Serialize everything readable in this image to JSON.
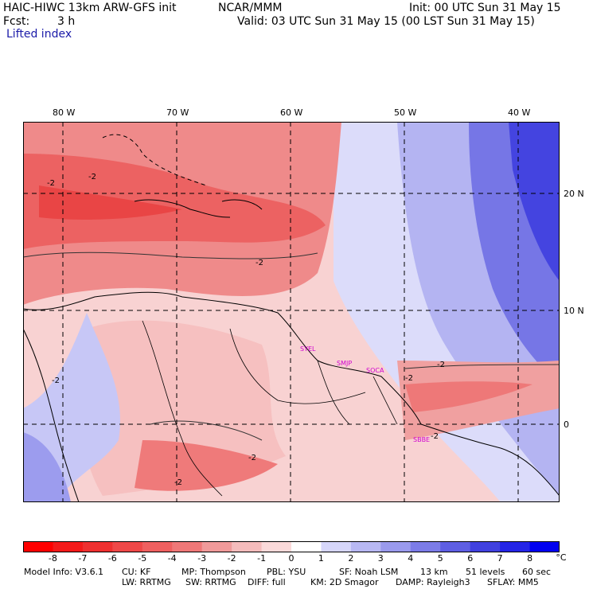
{
  "header": {
    "title_left": "HAIC-HIWC 13km ARW-GFS init",
    "center_label": "NCAR/MMM",
    "init_label": "Init: 00 UTC Sun 31 May 15",
    "fcst_label": "Fcst:",
    "fcst_value": "3 h",
    "valid_label": "Valid: 03 UTC Sun 31 May 15 (00 LST Sun 31 May 15)",
    "field_name": "Lifted index"
  },
  "map": {
    "lon_labels": [
      "80 W",
      "70 W",
      "60 W",
      "50 W",
      "40 W"
    ],
    "lat_labels": [
      "20 N",
      "10 N",
      "0"
    ],
    "stations": [
      "SYEL",
      "SMJP",
      "SOCA",
      "SBBE"
    ],
    "contour_labels": [
      "-2",
      "-2",
      "-2",
      "-2",
      "-2",
      "-2",
      "-2",
      "-2",
      "-2"
    ]
  },
  "colorbar": {
    "ticks": [
      "-8",
      "-7",
      "-6",
      "-5",
      "-4",
      "-3",
      "-2",
      "-1",
      "0",
      "1",
      "2",
      "3",
      "4",
      "5",
      "6",
      "7",
      "8"
    ],
    "unit": "°C",
    "colors": [
      "#ff0000",
      "#f41a1a",
      "#ef3030",
      "#ef4848",
      "#ef6060",
      "#ef7878",
      "#f09a9a",
      "#f5bcbc",
      "#fbdada",
      "#ffffff",
      "#d6d6fa",
      "#b8b8f3",
      "#9a9aed",
      "#7c7ce8",
      "#5e5ee3",
      "#4141e0",
      "#2424e6",
      "#0000f0"
    ]
  },
  "footer": {
    "line1": [
      "Model Info: V3.6.1",
      "CU: KF",
      "MP: Thompson",
      "PBL: YSU",
      "SF: Noah LSM",
      "13 km",
      "51 levels",
      "60 sec"
    ],
    "line2": [
      "LW: RRTMG",
      "SW: RRTMG",
      "DIFF: full",
      "KM: 2D Smagor",
      "DAMP: Rayleigh3",
      "SFLAY: MM5"
    ]
  }
}
